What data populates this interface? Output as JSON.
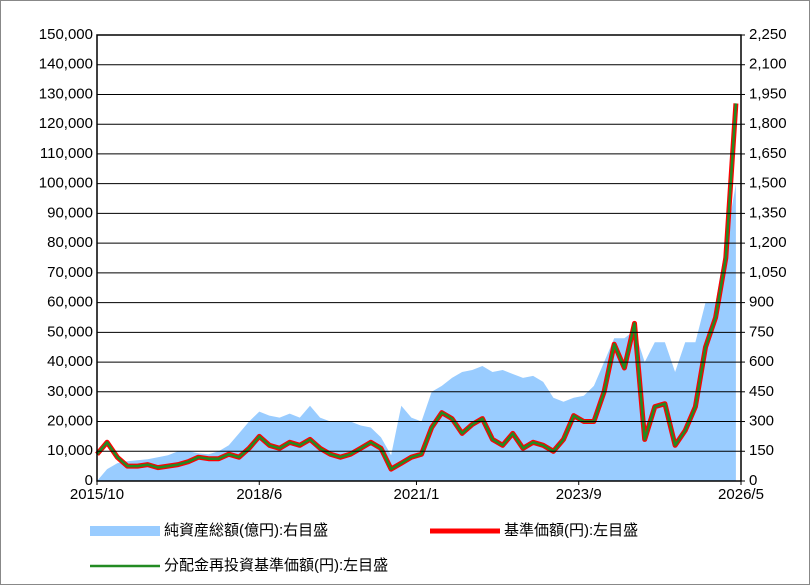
{
  "chart_data": {
    "type": "line",
    "x": [
      "2015/10",
      "2015/12",
      "2016/2",
      "2016/4",
      "2016/6",
      "2016/8",
      "2016/10",
      "2016/12",
      "2017/2",
      "2017/4",
      "2017/6",
      "2017/8",
      "2017/10",
      "2017/12",
      "2018/2",
      "2018/4",
      "2018/6",
      "2018/8",
      "2018/10",
      "2018/12",
      "2019/2",
      "2019/4",
      "2019/6",
      "2019/8",
      "2019/10",
      "2019/12",
      "2020/2",
      "2020/4",
      "2020/6",
      "2020/8",
      "2020/10",
      "2020/12",
      "2021/2",
      "2021/4",
      "2021/6",
      "2021/8",
      "2021/10",
      "2021/12",
      "2022/2",
      "2022/4",
      "2022/6",
      "2022/8",
      "2022/10",
      "2022/12",
      "2023/2",
      "2023/4",
      "2023/6",
      "2023/8",
      "2023/10",
      "2023/12",
      "2024/2",
      "2024/4",
      "2024/6",
      "2024/8",
      "2024/10",
      "2024/12",
      "2025/2",
      "2025/4",
      "2025/6",
      "2025/8",
      "2025/10",
      "2025/12",
      "2026/2",
      "2026/4"
    ],
    "xlim": [
      "2015/10",
      "2026/5"
    ],
    "xticks": [
      "2015/10",
      "2018/6",
      "2021/1",
      "2023/9",
      "2026/5"
    ],
    "ylim": [
      0,
      150000
    ],
    "yticks": [
      {
        "value": 0,
        "label": "0"
      },
      {
        "value": 10000,
        "label": "10,000"
      },
      {
        "value": 20000,
        "label": "20,000"
      },
      {
        "value": 30000,
        "label": "30,000"
      },
      {
        "value": 40000,
        "label": "40,000"
      },
      {
        "value": 50000,
        "label": "50,000"
      },
      {
        "value": 60000,
        "label": "60,000"
      },
      {
        "value": 70000,
        "label": "70,000"
      },
      {
        "value": 80000,
        "label": "80,000"
      },
      {
        "value": 90000,
        "label": "90,000"
      },
      {
        "value": 100000,
        "label": "100,000"
      },
      {
        "value": 110000,
        "label": "110,000"
      },
      {
        "value": 120000,
        "label": "120,000"
      },
      {
        "value": 130000,
        "label": "130,000"
      },
      {
        "value": 140000,
        "label": "140,000"
      },
      {
        "value": 150000,
        "label": "150,000"
      }
    ],
    "y2lim": [
      0,
      2250
    ],
    "y2ticks": [
      0,
      150,
      300,
      450,
      600,
      750,
      900,
      {
        "value": 1050,
        "label": "1,050"
      },
      {
        "value": 1200,
        "label": "1,200"
      },
      {
        "value": 1350,
        "label": "1,350"
      },
      {
        "value": 1500,
        "label": "1,500"
      },
      {
        "value": 1650,
        "label": "1,650"
      },
      {
        "value": 1800,
        "label": "1,800"
      },
      {
        "value": 1950,
        "label": "1,950"
      },
      {
        "value": 2100,
        "label": "2,100"
      },
      {
        "value": 2250,
        "label": "2,250"
      }
    ],
    "grid": true,
    "series": [
      {
        "name": "純資産総額(億円):右目盛",
        "color": "#99ccff",
        "axis": "y2",
        "kind": "area",
        "values": [
          0,
          60,
          90,
          100,
          105,
          110,
          120,
          130,
          150,
          150,
          140,
          135,
          150,
          180,
          240,
          300,
          350,
          330,
          320,
          340,
          320,
          380,
          320,
          300,
          300,
          300,
          280,
          270,
          220,
          130,
          380,
          320,
          300,
          450,
          480,
          520,
          550,
          560,
          580,
          550,
          560,
          540,
          520,
          530,
          500,
          420,
          400,
          420,
          430,
          480,
          600,
          720,
          720,
          760,
          600,
          700,
          700,
          550,
          700,
          700,
          900,
          900,
          1200,
          1500
        ]
      },
      {
        "name": "基準価額(円):左目盛",
        "color": "#ff0000",
        "kind": "line",
        "values": [
          9000,
          13000,
          8000,
          5000,
          5000,
          5500,
          4500,
          5000,
          5500,
          6500,
          8000,
          7500,
          7500,
          9000,
          8000,
          11000,
          15000,
          12000,
          11000,
          13000,
          12000,
          14000,
          11000,
          9000,
          8000,
          9000,
          11000,
          13000,
          11000,
          4000,
          6000,
          8000,
          9000,
          18000,
          23000,
          21000,
          16000,
          19000,
          21000,
          14000,
          12000,
          16000,
          11000,
          13000,
          12000,
          10000,
          14000,
          22000,
          20000,
          20000,
          30000,
          46000,
          38000,
          53000,
          14000,
          25000,
          26000,
          12000,
          17000,
          25000,
          45000,
          55000,
          75000,
          127000
        ]
      },
      {
        "name": "分配金再投資基準価額(円):左目盛",
        "color": "#228b22",
        "kind": "line",
        "values": [
          9000,
          13000,
          8000,
          5000,
          5000,
          5500,
          4500,
          5000,
          5500,
          6500,
          8000,
          7500,
          7500,
          9000,
          8000,
          11000,
          15000,
          12000,
          11000,
          13000,
          12000,
          14000,
          11000,
          9000,
          8000,
          9000,
          11000,
          13000,
          11000,
          4000,
          6000,
          8000,
          9000,
          18000,
          23000,
          21000,
          16000,
          19000,
          21000,
          14000,
          12000,
          16000,
          11000,
          13000,
          12000,
          10000,
          14000,
          22000,
          20000,
          20000,
          30000,
          46000,
          38000,
          53000,
          14000,
          25000,
          26000,
          12000,
          17000,
          25000,
          45000,
          55000,
          75000,
          127000
        ]
      }
    ]
  }
}
